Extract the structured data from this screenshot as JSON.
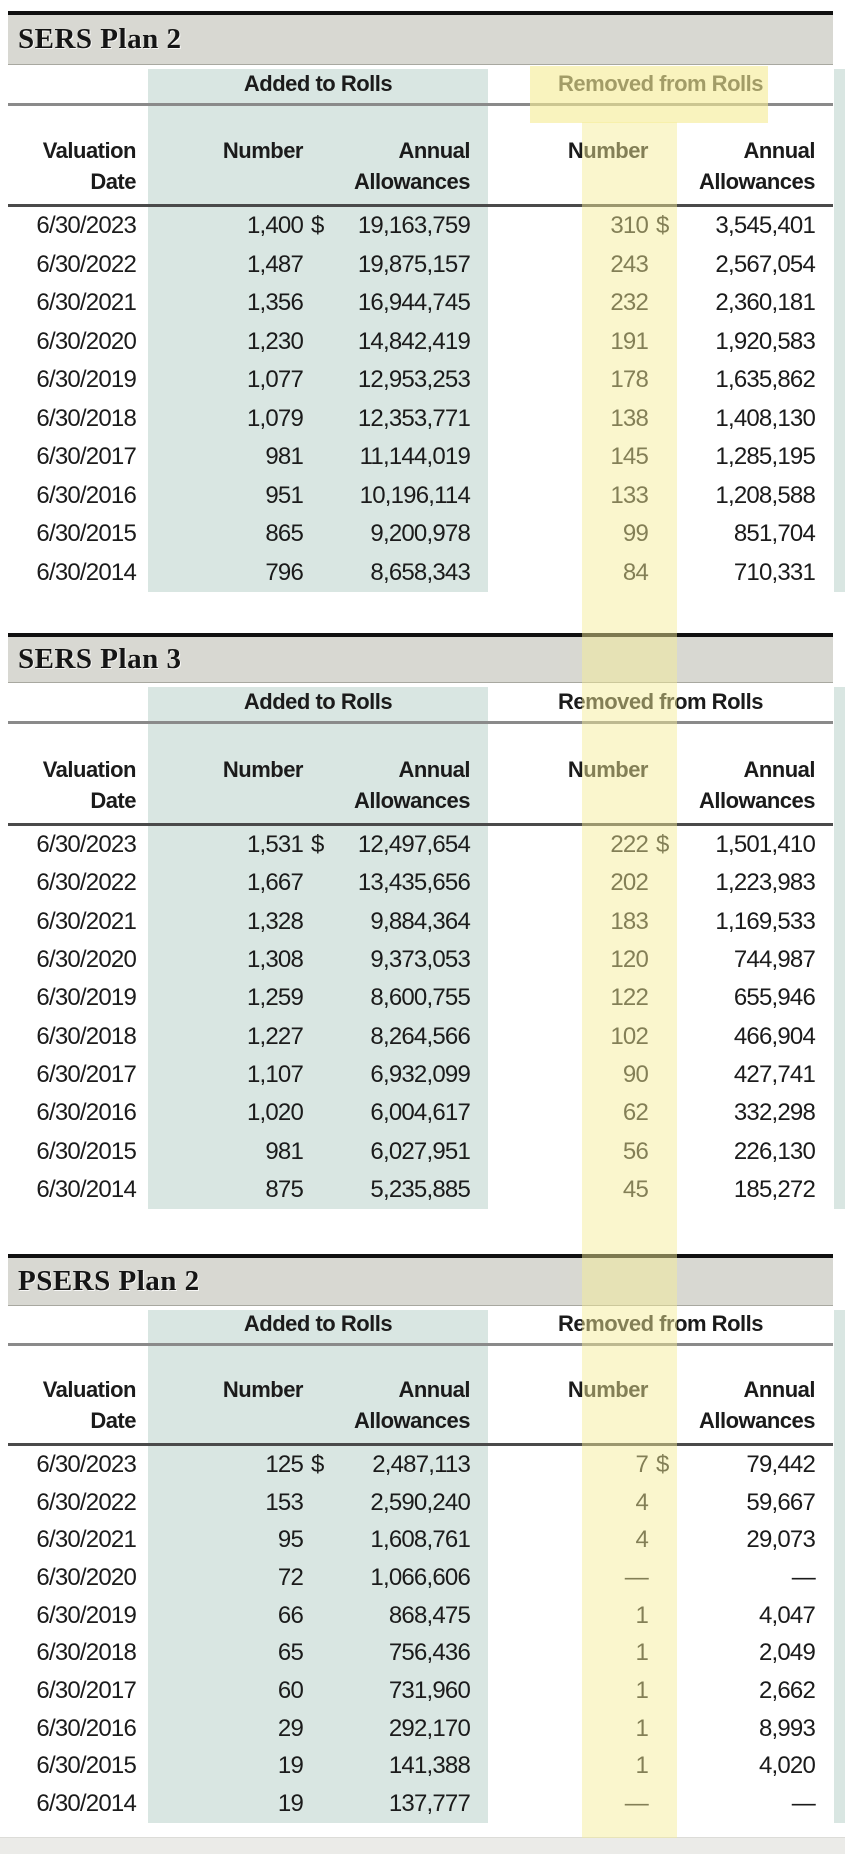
{
  "report": {
    "colors": {
      "added_band_teal": "#d9e6e2",
      "highlight_yellow": "#f5ec96",
      "title_bar_gray": "#d8d8d2",
      "text": "#1b1b1b"
    },
    "tables": [
      {
        "title": "SERS Plan 2",
        "group_headers": {
          "added": "Added to Rolls",
          "removed": "Removed from Rolls"
        },
        "column_headers": {
          "valuation": "Valuation\nDate",
          "number": "Number",
          "annual": "Annual\nAllowances"
        },
        "rows": [
          {
            "date": "6/30/2023",
            "added_number": "1,400",
            "added_dollar": "$",
            "added_allowances": "19,163,759",
            "removed_number": "310",
            "removed_dollar": "$",
            "removed_allowances": "3,545,401"
          },
          {
            "date": "6/30/2022",
            "added_number": "1,487",
            "added_dollar": "",
            "added_allowances": "19,875,157",
            "removed_number": "243",
            "removed_dollar": "",
            "removed_allowances": "2,567,054"
          },
          {
            "date": "6/30/2021",
            "added_number": "1,356",
            "added_dollar": "",
            "added_allowances": "16,944,745",
            "removed_number": "232",
            "removed_dollar": "",
            "removed_allowances": "2,360,181"
          },
          {
            "date": "6/30/2020",
            "added_number": "1,230",
            "added_dollar": "",
            "added_allowances": "14,842,419",
            "removed_number": "191",
            "removed_dollar": "",
            "removed_allowances": "1,920,583"
          },
          {
            "date": "6/30/2019",
            "added_number": "1,077",
            "added_dollar": "",
            "added_allowances": "12,953,253",
            "removed_number": "178",
            "removed_dollar": "",
            "removed_allowances": "1,635,862"
          },
          {
            "date": "6/30/2018",
            "added_number": "1,079",
            "added_dollar": "",
            "added_allowances": "12,353,771",
            "removed_number": "138",
            "removed_dollar": "",
            "removed_allowances": "1,408,130"
          },
          {
            "date": "6/30/2017",
            "added_number": "981",
            "added_dollar": "",
            "added_allowances": "11,144,019",
            "removed_number": "145",
            "removed_dollar": "",
            "removed_allowances": "1,285,195"
          },
          {
            "date": "6/30/2016",
            "added_number": "951",
            "added_dollar": "",
            "added_allowances": "10,196,114",
            "removed_number": "133",
            "removed_dollar": "",
            "removed_allowances": "1,208,588"
          },
          {
            "date": "6/30/2015",
            "added_number": "865",
            "added_dollar": "",
            "added_allowances": "9,200,978",
            "removed_number": "99",
            "removed_dollar": "",
            "removed_allowances": "851,704"
          },
          {
            "date": "6/30/2014",
            "added_number": "796",
            "added_dollar": "",
            "added_allowances": "8,658,343",
            "removed_number": "84",
            "removed_dollar": "",
            "removed_allowances": "710,331"
          }
        ]
      },
      {
        "title": "SERS Plan 3",
        "group_headers": {
          "added": "Added to Rolls",
          "removed": "Removed from Rolls"
        },
        "column_headers": {
          "valuation": "Valuation\nDate",
          "number": "Number",
          "annual": "Annual\nAllowances"
        },
        "rows": [
          {
            "date": "6/30/2023",
            "added_number": "1,531",
            "added_dollar": "$",
            "added_allowances": "12,497,654",
            "removed_number": "222",
            "removed_dollar": "$",
            "removed_allowances": "1,501,410"
          },
          {
            "date": "6/30/2022",
            "added_number": "1,667",
            "added_dollar": "",
            "added_allowances": "13,435,656",
            "removed_number": "202",
            "removed_dollar": "",
            "removed_allowances": "1,223,983"
          },
          {
            "date": "6/30/2021",
            "added_number": "1,328",
            "added_dollar": "",
            "added_allowances": "9,884,364",
            "removed_number": "183",
            "removed_dollar": "",
            "removed_allowances": "1,169,533"
          },
          {
            "date": "6/30/2020",
            "added_number": "1,308",
            "added_dollar": "",
            "added_allowances": "9,373,053",
            "removed_number": "120",
            "removed_dollar": "",
            "removed_allowances": "744,987"
          },
          {
            "date": "6/30/2019",
            "added_number": "1,259",
            "added_dollar": "",
            "added_allowances": "8,600,755",
            "removed_number": "122",
            "removed_dollar": "",
            "removed_allowances": "655,946"
          },
          {
            "date": "6/30/2018",
            "added_number": "1,227",
            "added_dollar": "",
            "added_allowances": "8,264,566",
            "removed_number": "102",
            "removed_dollar": "",
            "removed_allowances": "466,904"
          },
          {
            "date": "6/30/2017",
            "added_number": "1,107",
            "added_dollar": "",
            "added_allowances": "6,932,099",
            "removed_number": "90",
            "removed_dollar": "",
            "removed_allowances": "427,741"
          },
          {
            "date": "6/30/2016",
            "added_number": "1,020",
            "added_dollar": "",
            "added_allowances": "6,004,617",
            "removed_number": "62",
            "removed_dollar": "",
            "removed_allowances": "332,298"
          },
          {
            "date": "6/30/2015",
            "added_number": "981",
            "added_dollar": "",
            "added_allowances": "6,027,951",
            "removed_number": "56",
            "removed_dollar": "",
            "removed_allowances": "226,130"
          },
          {
            "date": "6/30/2014",
            "added_number": "875",
            "added_dollar": "",
            "added_allowances": "5,235,885",
            "removed_number": "45",
            "removed_dollar": "",
            "removed_allowances": "185,272"
          }
        ]
      },
      {
        "title": "PSERS Plan 2",
        "group_headers": {
          "added": "Added to Rolls",
          "removed": "Removed from Rolls"
        },
        "column_headers": {
          "valuation": "Valuation\nDate",
          "number": "Number",
          "annual": "Annual\nAllowances"
        },
        "rows": [
          {
            "date": "6/30/2023",
            "added_number": "125",
            "added_dollar": "$",
            "added_allowances": "2,487,113",
            "removed_number": "7",
            "removed_dollar": "$",
            "removed_allowances": "79,442"
          },
          {
            "date": "6/30/2022",
            "added_number": "153",
            "added_dollar": "",
            "added_allowances": "2,590,240",
            "removed_number": "4",
            "removed_dollar": "",
            "removed_allowances": "59,667"
          },
          {
            "date": "6/30/2021",
            "added_number": "95",
            "added_dollar": "",
            "added_allowances": "1,608,761",
            "removed_number": "4",
            "removed_dollar": "",
            "removed_allowances": "29,073"
          },
          {
            "date": "6/30/2020",
            "added_number": "72",
            "added_dollar": "",
            "added_allowances": "1,066,606",
            "removed_number": "—",
            "removed_dollar": "",
            "removed_allowances": "—"
          },
          {
            "date": "6/30/2019",
            "added_number": "66",
            "added_dollar": "",
            "added_allowances": "868,475",
            "removed_number": "1",
            "removed_dollar": "",
            "removed_allowances": "4,047"
          },
          {
            "date": "6/30/2018",
            "added_number": "65",
            "added_dollar": "",
            "added_allowances": "756,436",
            "removed_number": "1",
            "removed_dollar": "",
            "removed_allowances": "2,049"
          },
          {
            "date": "6/30/2017",
            "added_number": "60",
            "added_dollar": "",
            "added_allowances": "731,960",
            "removed_number": "1",
            "removed_dollar": "",
            "removed_allowances": "2,662"
          },
          {
            "date": "6/30/2016",
            "added_number": "29",
            "added_dollar": "",
            "added_allowances": "292,170",
            "removed_number": "1",
            "removed_dollar": "",
            "removed_allowances": "8,993"
          },
          {
            "date": "6/30/2015",
            "added_number": "19",
            "added_dollar": "",
            "added_allowances": "141,388",
            "removed_number": "1",
            "removed_dollar": "",
            "removed_allowances": "4,020"
          },
          {
            "date": "6/30/2014",
            "added_number": "19",
            "added_dollar": "",
            "added_allowances": "137,777",
            "removed_number": "—",
            "removed_dollar": "",
            "removed_allowances": "—"
          }
        ]
      }
    ]
  }
}
